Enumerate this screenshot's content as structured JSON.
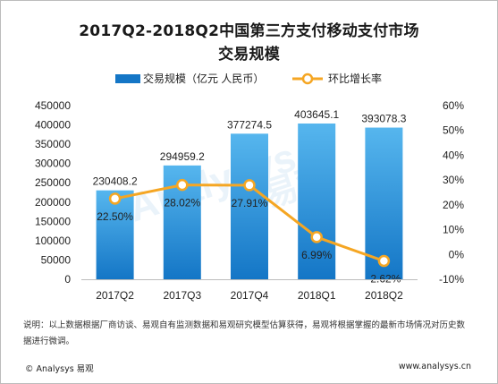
{
  "title_line1": "2017Q2-2018Q2中国第三方支付移动支付市场",
  "title_line2": "交易规模",
  "note": "说明：以上数据根据厂商访谈、易观自有监测数据和易观研究模型估算获得，易观将根据掌握的最新市场情况对历史数据进行微调。",
  "footer_left": "© Analysys 易观",
  "footer_right": "www.analysys.cn",
  "colors": {
    "bar_top": "#56b6ee",
    "bar_bottom": "#1476c6",
    "line": "#f5a623"
  },
  "chart_data": {
    "type": "bar",
    "categories": [
      "2017Q2",
      "2017Q3",
      "2017Q4",
      "2018Q1",
      "2018Q2"
    ],
    "series": [
      {
        "name": "交易规模（亿元 人民币）",
        "type": "bar",
        "axis": "left",
        "values": [
          230408.2,
          294959.2,
          377274.5,
          403645.1,
          393078.3
        ],
        "labels": [
          "230408.2",
          "294959.2",
          "377274.5",
          "403645.1",
          "393078.3"
        ]
      },
      {
        "name": "环比增长率",
        "type": "line",
        "axis": "right",
        "values": [
          22.5,
          28.02,
          27.91,
          6.99,
          -2.62
        ],
        "labels": [
          "22.50%",
          "28.02%",
          "27.91%",
          "6.99%",
          "-2.62%"
        ]
      }
    ],
    "y_left": {
      "min": 0,
      "max": 450000,
      "step": 50000,
      "ticks": [
        "0",
        "50000",
        "100000",
        "150000",
        "200000",
        "250000",
        "300000",
        "350000",
        "400000",
        "450000"
      ]
    },
    "y_right": {
      "min": -10,
      "max": 60,
      "step": 10,
      "ticks": [
        "-10%",
        "0%",
        "10%",
        "20%",
        "30%",
        "40%",
        "50%",
        "60%"
      ]
    },
    "legend_position": "top",
    "grid": false
  }
}
